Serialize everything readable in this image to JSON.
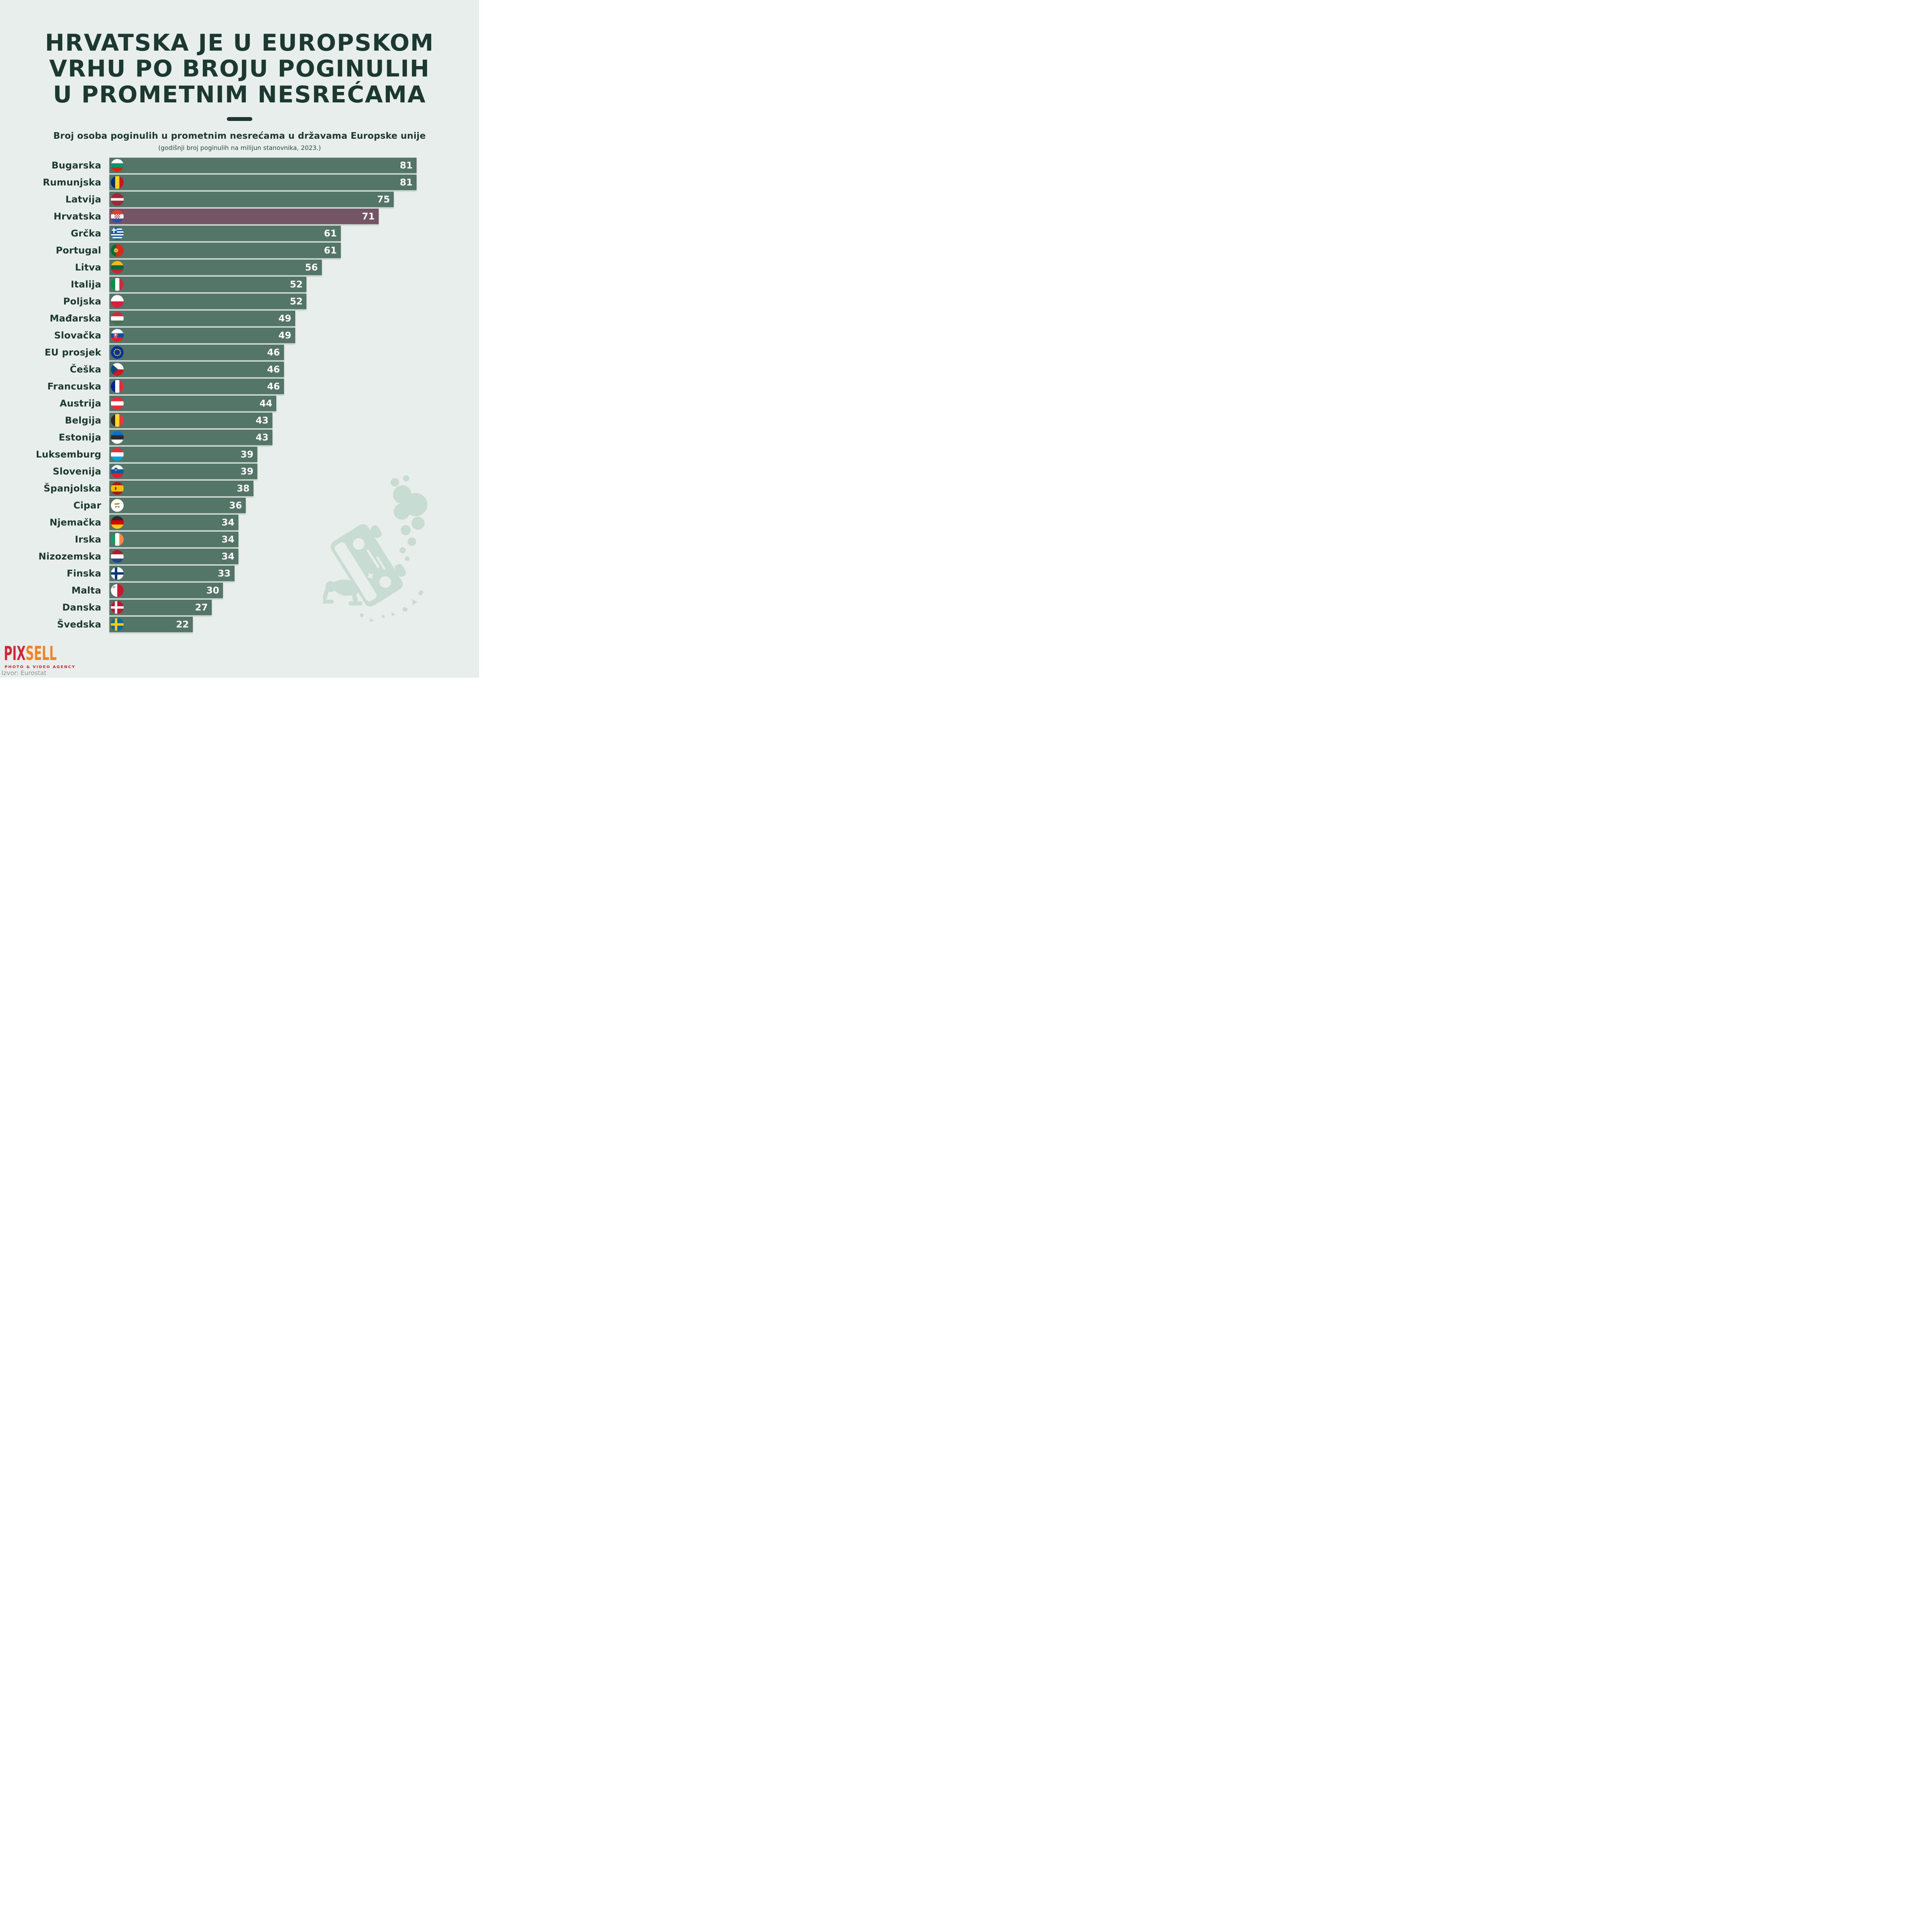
{
  "header": {
    "title_lines": [
      "HRVATSKA JE U EUROPSKOM",
      "VRHU PO BROJU POGINULIH",
      "U PROMETNIM NESREĆAMA"
    ],
    "subtitle": "Broj osoba poginulih u prometnim nesrećama u državama Europske unije",
    "note": "(godišnji broj poginulih na milijun stanovnika, 2023.)"
  },
  "chart_data": {
    "type": "bar",
    "orientation": "horizontal",
    "title": "Broj osoba poginulih u prometnim nesrećama u državama Europske unije",
    "subtitle": "(godišnji broj poginulih na milijun stanovnika, 2023.)",
    "categories": [
      "Bugarska",
      "Rumunjska",
      "Latvija",
      "Hrvatska",
      "Grčka",
      "Portugal",
      "Litva",
      "Italija",
      "Poljska",
      "Mađarska",
      "Slovačka",
      "EU prosjek",
      "Češka",
      "Francuska",
      "Austrija",
      "Belgija",
      "Estonija",
      "Luksemburg",
      "Slovenija",
      "Španjolska",
      "Cipar",
      "Njemačka",
      "Irska",
      "Nizozemska",
      "Finska",
      "Malta",
      "Danska",
      "Švedska"
    ],
    "values": [
      81,
      81,
      75,
      71,
      61,
      61,
      56,
      52,
      52,
      49,
      49,
      46,
      46,
      46,
      44,
      43,
      43,
      39,
      39,
      38,
      36,
      34,
      34,
      34,
      33,
      30,
      27,
      22
    ],
    "xlim": [
      0,
      81
    ],
    "highlight_category": "Hrvatska",
    "highlight_index": 3,
    "bar_color": "#537568",
    "highlight_color": "#745364",
    "value_label_position": "inside-right",
    "grid": false,
    "legend": false
  },
  "flags": [
    {
      "icon": "flag-bulgaria",
      "type": "h",
      "colors": [
        "#ffffff",
        "#00966e",
        "#d62612"
      ]
    },
    {
      "icon": "flag-romania",
      "type": "v",
      "colors": [
        "#002b7f",
        "#fcd116",
        "#ce1126"
      ]
    },
    {
      "icon": "flag-latvia",
      "type": "h",
      "colors": [
        "#9e2a38",
        "#ffffff",
        "#9e2a38"
      ],
      "widths": [
        0.4,
        0.2,
        0.4
      ]
    },
    {
      "icon": "flag-croatia",
      "type": "h",
      "colors": [
        "#e03c31",
        "#ffffff",
        "#2e51a3"
      ],
      "overlay": "croatia"
    },
    {
      "icon": "flag-greece",
      "type": "greece",
      "colors": [
        "#0d5eaf",
        "#ffffff"
      ]
    },
    {
      "icon": "flag-portugal",
      "type": "v",
      "colors": [
        "#046a38",
        "#da291c"
      ],
      "widths": [
        0.4,
        0.6
      ],
      "overlay": "portugal"
    },
    {
      "icon": "flag-lithuania",
      "type": "h",
      "colors": [
        "#fdb913",
        "#006a44",
        "#c1272d"
      ]
    },
    {
      "icon": "flag-italy",
      "type": "v",
      "colors": [
        "#009246",
        "#ffffff",
        "#ce2b37"
      ]
    },
    {
      "icon": "flag-poland",
      "type": "h",
      "colors": [
        "#ffffff",
        "#d4213d"
      ],
      "widths": [
        0.5,
        0.5
      ]
    },
    {
      "icon": "flag-hungary",
      "type": "h",
      "colors": [
        "#ce2939",
        "#ffffff",
        "#477050"
      ]
    },
    {
      "icon": "flag-slovakia",
      "type": "h",
      "colors": [
        "#ffffff",
        "#0b4ea2",
        "#ee1c25"
      ],
      "overlay": "slovakia"
    },
    {
      "icon": "flag-eu",
      "type": "eu",
      "colors": [
        "#003399",
        "#ffcc00"
      ]
    },
    {
      "icon": "flag-czechia",
      "type": "czech",
      "colors": [
        "#ffffff",
        "#d7141a",
        "#11457e"
      ]
    },
    {
      "icon": "flag-france",
      "type": "v",
      "colors": [
        "#002395",
        "#ffffff",
        "#ed2939"
      ]
    },
    {
      "icon": "flag-austria",
      "type": "h",
      "colors": [
        "#ed2939",
        "#ffffff",
        "#ed2939"
      ]
    },
    {
      "icon": "flag-belgium",
      "type": "v",
      "colors": [
        "#2d2926",
        "#fdda24",
        "#ef3340"
      ]
    },
    {
      "icon": "flag-estonia",
      "type": "h",
      "colors": [
        "#0072ce",
        "#2d2926",
        "#ffffff"
      ]
    },
    {
      "icon": "flag-luxembourg",
      "type": "h",
      "colors": [
        "#ed2939",
        "#ffffff",
        "#00a1de"
      ]
    },
    {
      "icon": "flag-slovenia",
      "type": "h",
      "colors": [
        "#ffffff",
        "#005da4",
        "#ed1c24"
      ],
      "overlay": "slovenia"
    },
    {
      "icon": "flag-spain",
      "type": "h",
      "colors": [
        "#aa151b",
        "#f1bf00",
        "#aa151b"
      ],
      "widths": [
        0.25,
        0.5,
        0.25
      ],
      "overlay": "spain"
    },
    {
      "icon": "flag-cyprus",
      "type": "cyprus",
      "colors": [
        "#ffffff",
        "#d57800",
        "#4e5b31"
      ]
    },
    {
      "icon": "flag-germany",
      "type": "h",
      "colors": [
        "#2d2926",
        "#dd0000",
        "#ffce00"
      ]
    },
    {
      "icon": "flag-ireland",
      "type": "v",
      "colors": [
        "#169b62",
        "#ffffff",
        "#ff883e"
      ]
    },
    {
      "icon": "flag-netherlands",
      "type": "h",
      "colors": [
        "#ae1c28",
        "#ffffff",
        "#21468b"
      ]
    },
    {
      "icon": "flag-finland",
      "type": "nordic",
      "colors": [
        "#ffffff",
        "#003580"
      ]
    },
    {
      "icon": "flag-malta",
      "type": "malta",
      "colors": [
        "#ffffff",
        "#cf142b",
        "#a0a3a6"
      ]
    },
    {
      "icon": "flag-denmark",
      "type": "nordic",
      "colors": [
        "#c8102e",
        "#ffffff"
      ]
    },
    {
      "icon": "flag-sweden",
      "type": "nordic",
      "colors": [
        "#006aa7",
        "#fecc02"
      ]
    }
  ],
  "footer": {
    "logo_pix": "PIX",
    "logo_sell": "SELL",
    "logo_tagline": "PHOTO & VIDEO AGENCY",
    "source": "Izvor: Eurostat"
  },
  "colors": {
    "background": "#e7eeeb",
    "bar": "#537568",
    "highlight": "#745364",
    "ink": "#1b3931",
    "label": "#1c3a32",
    "value_text": "#ffffff",
    "note": "#36463f",
    "source": "#8d9793",
    "logo_red": "#d62532",
    "logo_orange": "#f58220",
    "illustration": "#c9dcd2"
  }
}
